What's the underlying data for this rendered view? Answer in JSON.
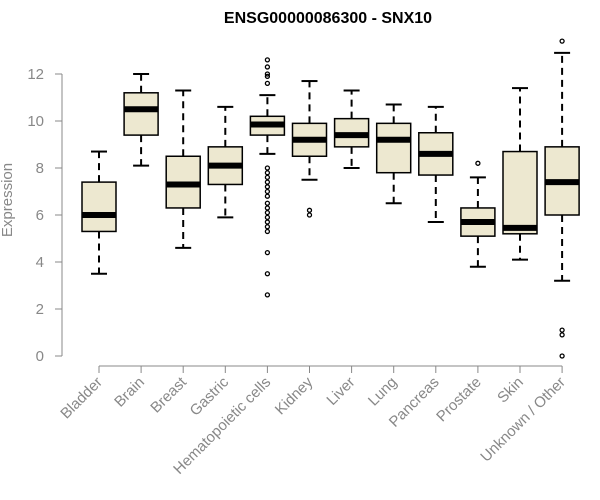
{
  "chart_data": {
    "type": "boxplot",
    "title": "ENSG00000086300 - SNX10",
    "xlabel": "",
    "ylabel": "Expression",
    "ylim": [
      0,
      13.2
    ],
    "yticks": [
      0,
      2,
      4,
      6,
      8,
      10,
      12
    ],
    "grid": false,
    "legend": "none",
    "box_color": "#ede8d0",
    "categories": [
      "Bladder",
      "Brain",
      "Breast",
      "Gastric",
      "Hematopoietic cells",
      "Kidney",
      "Liver",
      "Lung",
      "Pancreas",
      "Prostate",
      "Skin",
      "Unknown / Other"
    ],
    "boxes": [
      {
        "whislo": 3.5,
        "q1": 5.3,
        "med": 6.0,
        "q3": 7.4,
        "whishi": 8.7,
        "fliers": []
      },
      {
        "whislo": 8.1,
        "q1": 9.4,
        "med": 10.5,
        "q3": 11.2,
        "whishi": 12.0,
        "fliers": []
      },
      {
        "whislo": 4.6,
        "q1": 6.3,
        "med": 7.3,
        "q3": 8.5,
        "whishi": 11.3,
        "fliers": []
      },
      {
        "whislo": 5.9,
        "q1": 7.3,
        "med": 8.1,
        "q3": 8.9,
        "whishi": 10.6,
        "fliers": []
      },
      {
        "whislo": 8.6,
        "q1": 9.4,
        "med": 9.85,
        "q3": 10.2,
        "whishi": 11.1,
        "fliers": [
          12.6,
          12.3,
          12.0,
          11.9,
          11.6,
          8.0,
          7.8,
          7.6,
          7.4,
          7.2,
          7.0,
          6.8,
          6.5,
          6.3,
          6.1,
          5.9,
          5.7,
          5.5,
          5.3,
          4.4,
          3.5,
          2.6
        ]
      },
      {
        "whislo": 7.5,
        "q1": 8.5,
        "med": 9.2,
        "q3": 9.9,
        "whishi": 11.7,
        "fliers": [
          6.2,
          6.0
        ]
      },
      {
        "whislo": 8.0,
        "q1": 8.9,
        "med": 9.4,
        "q3": 10.1,
        "whishi": 11.3,
        "fliers": []
      },
      {
        "whislo": 6.5,
        "q1": 7.8,
        "med": 9.2,
        "q3": 9.9,
        "whishi": 10.7,
        "fliers": []
      },
      {
        "whislo": 5.7,
        "q1": 7.7,
        "med": 8.6,
        "q3": 9.5,
        "whishi": 10.6,
        "fliers": []
      },
      {
        "whislo": 3.8,
        "q1": 5.1,
        "med": 5.7,
        "q3": 6.3,
        "whishi": 7.6,
        "fliers": [
          8.2
        ]
      },
      {
        "whislo": 4.1,
        "q1": 5.2,
        "med": 5.45,
        "q3": 8.7,
        "whishi": 11.4,
        "fliers": []
      },
      {
        "whislo": 3.2,
        "q1": 6.0,
        "med": 7.4,
        "q3": 8.9,
        "whishi": 12.9,
        "fliers": [
          13.4,
          1.1,
          0.9,
          0.0
        ]
      }
    ]
  }
}
